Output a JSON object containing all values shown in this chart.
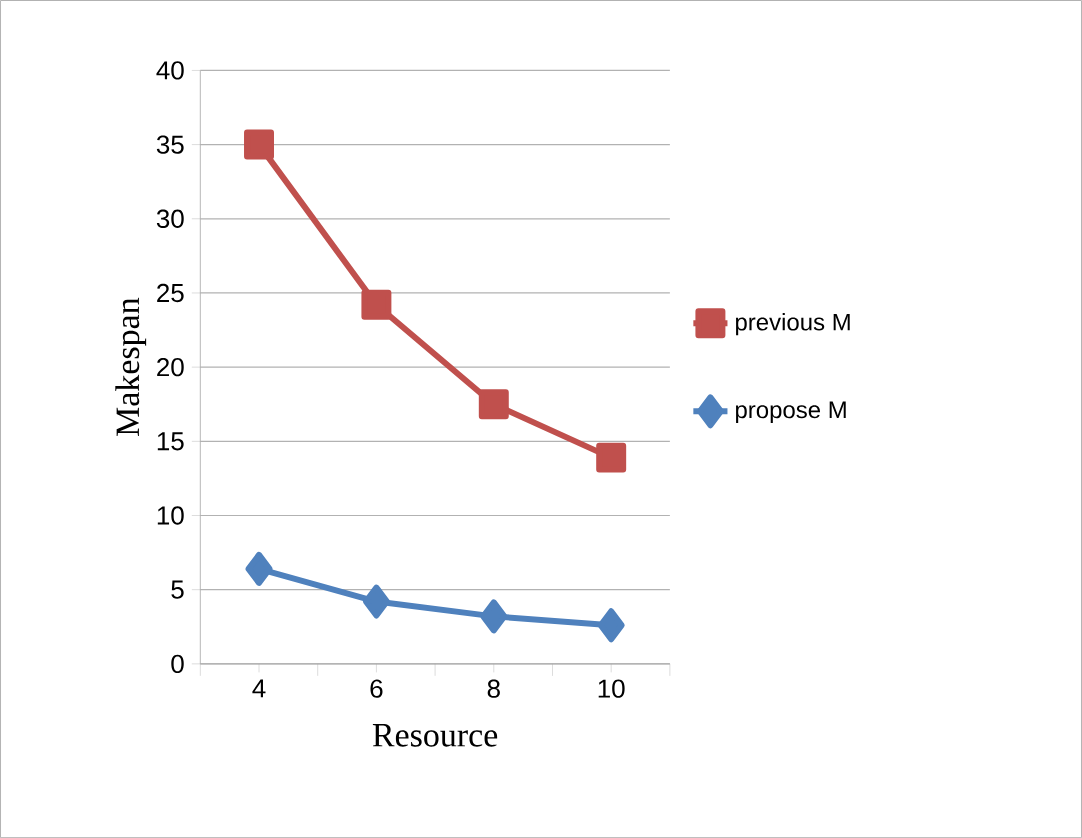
{
  "chart_data": {
    "type": "line",
    "xlabel": "Resource",
    "ylabel": "Makespan",
    "categories": [
      "4",
      "6",
      "8",
      "10"
    ],
    "series": [
      {
        "name": "previous M",
        "color": "#c0504d",
        "marker": "square",
        "values": [
          35,
          24.2,
          17.5,
          13.9
        ]
      },
      {
        "name": "propose M",
        "color": "#4f81bd",
        "marker": "diamond",
        "values": [
          6.4,
          4.2,
          3.2,
          2.6
        ]
      }
    ],
    "ylim": [
      0,
      40
    ],
    "yticks": [
      0,
      5,
      10,
      15,
      20,
      25,
      30,
      35,
      40
    ],
    "grid": "y",
    "legend": "right"
  }
}
